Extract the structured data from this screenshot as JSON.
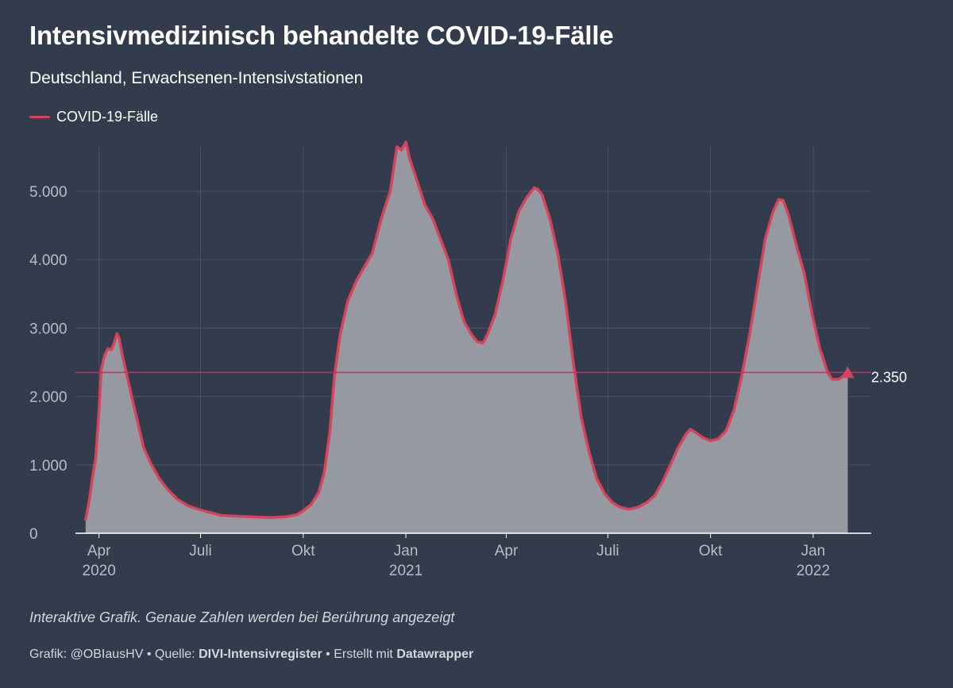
{
  "header": {
    "title": "Intensivmedizinisch behandelte COVID-19-Fälle",
    "subtitle": "Deutschland, Erwachsenen-Intensivstationen"
  },
  "footer": {
    "note": "Interaktive Grafik. Genaue Zahlen werden bei Berührung angezeigt",
    "credit_label": "Grafik: @OBIausHV",
    "separator": "•",
    "source_label": "Quelle:",
    "source_name": "DIVI-Intensivregister",
    "made_with_label": "Erstellt mit",
    "made_with_name": "Datawrapper"
  },
  "colors": {
    "background": "#333c4c",
    "line": "#d6435a",
    "area": "#9ea2a8",
    "reference_line": "#e0206e",
    "grid": "#4b5465",
    "axis_text": "#b9bcc3"
  },
  "chart_data": {
    "type": "area",
    "x_axis": {
      "type": "date",
      "range": [
        "2020-03-18",
        "2022-02-22"
      ],
      "ticks": [
        {
          "date": "2020-04-01",
          "label": "Apr",
          "sublabel": "2020"
        },
        {
          "date": "2020-07-01",
          "label": "Juli",
          "sublabel": ""
        },
        {
          "date": "2020-10-01",
          "label": "Okt",
          "sublabel": ""
        },
        {
          "date": "2021-01-01",
          "label": "Jan",
          "sublabel": "2021"
        },
        {
          "date": "2021-04-01",
          "label": "Apr",
          "sublabel": ""
        },
        {
          "date": "2021-07-01",
          "label": "Juli",
          "sublabel": ""
        },
        {
          "date": "2021-10-01",
          "label": "Okt",
          "sublabel": ""
        },
        {
          "date": "2022-01-01",
          "label": "Jan",
          "sublabel": "2022"
        }
      ]
    },
    "y_axis": {
      "range": [
        0,
        5800
      ],
      "ticks": [
        {
          "value": 0,
          "label": "0"
        },
        {
          "value": 1000,
          "label": "1.000"
        },
        {
          "value": 2000,
          "label": "2.000"
        },
        {
          "value": 3000,
          "label": "3.000"
        },
        {
          "value": 4000,
          "label": "4.000"
        },
        {
          "value": 5000,
          "label": "5.000"
        }
      ]
    },
    "grid": true,
    "legend_position": "top-left",
    "series": [
      {
        "name": "COVID-19-Fälle",
        "points": [
          [
            "2020-03-20",
            200
          ],
          [
            "2020-03-23",
            450
          ],
          [
            "2020-03-26",
            800
          ],
          [
            "2020-03-29",
            1100
          ],
          [
            "2020-04-01",
            1800
          ],
          [
            "2020-04-03",
            2400
          ],
          [
            "2020-04-06",
            2600
          ],
          [
            "2020-04-09",
            2700
          ],
          [
            "2020-04-12",
            2680
          ],
          [
            "2020-04-15",
            2800
          ],
          [
            "2020-04-17",
            2920
          ],
          [
            "2020-04-19",
            2850
          ],
          [
            "2020-04-22",
            2600
          ],
          [
            "2020-04-26",
            2300
          ],
          [
            "2020-05-01",
            1950
          ],
          [
            "2020-05-06",
            1600
          ],
          [
            "2020-05-11",
            1250
          ],
          [
            "2020-05-18",
            1000
          ],
          [
            "2020-05-25",
            800
          ],
          [
            "2020-06-01",
            650
          ],
          [
            "2020-06-10",
            500
          ],
          [
            "2020-06-20",
            400
          ],
          [
            "2020-07-01",
            340
          ],
          [
            "2020-07-10",
            300
          ],
          [
            "2020-07-20",
            260
          ],
          [
            "2020-08-01",
            250
          ],
          [
            "2020-08-15",
            240
          ],
          [
            "2020-09-01",
            230
          ],
          [
            "2020-09-15",
            240
          ],
          [
            "2020-09-25",
            270
          ],
          [
            "2020-10-01",
            330
          ],
          [
            "2020-10-08",
            420
          ],
          [
            "2020-10-15",
            600
          ],
          [
            "2020-10-20",
            900
          ],
          [
            "2020-10-25",
            1500
          ],
          [
            "2020-10-29",
            2300
          ],
          [
            "2020-11-03",
            2900
          ],
          [
            "2020-11-10",
            3400
          ],
          [
            "2020-11-18",
            3700
          ],
          [
            "2020-11-25",
            3900
          ],
          [
            "2020-12-02",
            4100
          ],
          [
            "2020-12-10",
            4600
          ],
          [
            "2020-12-18",
            5000
          ],
          [
            "2020-12-24",
            5650
          ],
          [
            "2020-12-28",
            5600
          ],
          [
            "2021-01-01",
            5720
          ],
          [
            "2021-01-04",
            5500
          ],
          [
            "2021-01-10",
            5200
          ],
          [
            "2021-01-18",
            4800
          ],
          [
            "2021-01-25",
            4600
          ],
          [
            "2021-02-01",
            4300
          ],
          [
            "2021-02-08",
            4000
          ],
          [
            "2021-02-15",
            3500
          ],
          [
            "2021-02-22",
            3100
          ],
          [
            "2021-03-01",
            2900
          ],
          [
            "2021-03-06",
            2800
          ],
          [
            "2021-03-11",
            2780
          ],
          [
            "2021-03-15",
            2900
          ],
          [
            "2021-03-22",
            3200
          ],
          [
            "2021-03-29",
            3700
          ],
          [
            "2021-04-05",
            4300
          ],
          [
            "2021-04-12",
            4700
          ],
          [
            "2021-04-19",
            4900
          ],
          [
            "2021-04-26",
            5050
          ],
          [
            "2021-04-29",
            5030
          ],
          [
            "2021-05-03",
            4950
          ],
          [
            "2021-05-10",
            4600
          ],
          [
            "2021-05-17",
            4100
          ],
          [
            "2021-05-24",
            3400
          ],
          [
            "2021-05-31",
            2500
          ],
          [
            "2021-06-07",
            1700
          ],
          [
            "2021-06-14",
            1200
          ],
          [
            "2021-06-21",
            800
          ],
          [
            "2021-06-28",
            580
          ],
          [
            "2021-07-05",
            450
          ],
          [
            "2021-07-12",
            380
          ],
          [
            "2021-07-20",
            350
          ],
          [
            "2021-07-28",
            380
          ],
          [
            "2021-08-05",
            450
          ],
          [
            "2021-08-12",
            550
          ],
          [
            "2021-08-19",
            750
          ],
          [
            "2021-08-26",
            1000
          ],
          [
            "2021-09-02",
            1250
          ],
          [
            "2021-09-09",
            1450
          ],
          [
            "2021-09-13",
            1520
          ],
          [
            "2021-09-17",
            1480
          ],
          [
            "2021-09-24",
            1400
          ],
          [
            "2021-10-01",
            1350
          ],
          [
            "2021-10-08",
            1380
          ],
          [
            "2021-10-15",
            1500
          ],
          [
            "2021-10-22",
            1800
          ],
          [
            "2021-10-29",
            2300
          ],
          [
            "2021-11-05",
            2900
          ],
          [
            "2021-11-12",
            3600
          ],
          [
            "2021-11-19",
            4300
          ],
          [
            "2021-11-26",
            4700
          ],
          [
            "2021-12-01",
            4880
          ],
          [
            "2021-12-05",
            4870
          ],
          [
            "2021-12-10",
            4650
          ],
          [
            "2021-12-17",
            4200
          ],
          [
            "2021-12-24",
            3800
          ],
          [
            "2021-12-31",
            3200
          ],
          [
            "2022-01-07",
            2700
          ],
          [
            "2022-01-14",
            2350
          ],
          [
            "2022-01-18",
            2250
          ],
          [
            "2022-01-24",
            2250
          ],
          [
            "2022-01-28",
            2300
          ],
          [
            "2022-02-01",
            2350
          ]
        ]
      }
    ],
    "reference_line": {
      "value": 2350,
      "label": "2.350"
    },
    "last_value_marker": {
      "date": "2022-02-01",
      "value": 2350
    }
  }
}
